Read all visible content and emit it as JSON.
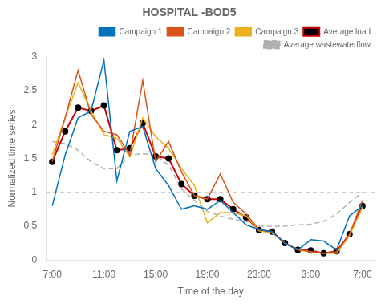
{
  "chart_data": {
    "type": "line",
    "title": "HOSPITAL -BOD5",
    "xlabel": "Time of the day",
    "ylabel": "Normalized time series",
    "x": [
      7,
      8,
      9,
      10,
      11,
      12,
      13,
      14,
      15,
      16,
      17,
      18,
      19,
      20,
      21,
      22,
      23,
      24,
      25,
      26,
      27,
      28,
      29,
      30,
      31
    ],
    "xlim": [
      6.5,
      32
    ],
    "xticks": [
      {
        "value": 7,
        "label": "7:00"
      },
      {
        "value": 11,
        "label": "11:00"
      },
      {
        "value": 15,
        "label": "15:00"
      },
      {
        "value": 19,
        "label": "19:00"
      },
      {
        "value": 23,
        "label": "23:00"
      },
      {
        "value": 27,
        "label": "3:00"
      },
      {
        "value": 31,
        "label": "7:00"
      }
    ],
    "ylim": [
      0,
      3
    ],
    "yticks": [
      0,
      0.5,
      1,
      1.5,
      2,
      2.5,
      3
    ],
    "hline": 1.0,
    "grid": false,
    "legend": "upper right",
    "series": [
      {
        "name": "Campaign 1",
        "color": "#0072bd",
        "line_style": "solid",
        "values": [
          0.8,
          1.55,
          2.1,
          2.2,
          2.95,
          1.17,
          1.9,
          1.97,
          1.35,
          1.1,
          0.75,
          0.8,
          0.75,
          0.88,
          0.7,
          0.52,
          0.45,
          0.42,
          0.25,
          0.15,
          0.3,
          0.28,
          0.15,
          0.65,
          0.8
        ]
      },
      {
        "name": "Campaign 2",
        "color": "#d95319",
        "line_style": "solid",
        "values": [
          1.45,
          2.1,
          2.8,
          2.15,
          1.9,
          1.85,
          1.55,
          2.65,
          1.45,
          1.75,
          1.3,
          0.95,
          0.9,
          1.27,
          0.85,
          0.68,
          0.45,
          0.42,
          0.25,
          0.16,
          0.12,
          0.1,
          0.12,
          0.38,
          0.88
        ]
      },
      {
        "name": "Campaign 3",
        "color": "#edb120",
        "line_style": "solid",
        "values": [
          1.55,
          2.1,
          2.62,
          2.2,
          1.85,
          1.8,
          1.52,
          2.1,
          1.82,
          1.65,
          1.35,
          1.1,
          0.55,
          0.7,
          0.7,
          0.65,
          0.43,
          0.4,
          0.25,
          0.15,
          0.12,
          0.1,
          0.1,
          0.36,
          0.78
        ]
      },
      {
        "name": "Average load",
        "color": "#cc0000",
        "line_style": "solid",
        "marker": "circle",
        "values": [
          1.45,
          1.9,
          2.25,
          2.2,
          2.28,
          1.62,
          1.65,
          2.02,
          1.53,
          1.5,
          1.12,
          0.95,
          0.9,
          0.9,
          0.75,
          0.63,
          0.44,
          0.42,
          0.25,
          0.15,
          0.14,
          0.1,
          0.13,
          0.38,
          0.8
        ]
      },
      {
        "name": "Average wastewaterflow",
        "color": "#b0b0b0",
        "line_style": "dashed",
        "values": [
          1.75,
          1.72,
          1.62,
          1.45,
          1.35,
          1.35,
          1.55,
          1.57,
          1.55,
          1.4,
          1.05,
          0.88,
          0.72,
          0.65,
          0.6,
          0.57,
          0.5,
          0.5,
          0.5,
          0.52,
          0.53,
          0.57,
          0.68,
          0.85,
          1.0
        ]
      }
    ]
  }
}
